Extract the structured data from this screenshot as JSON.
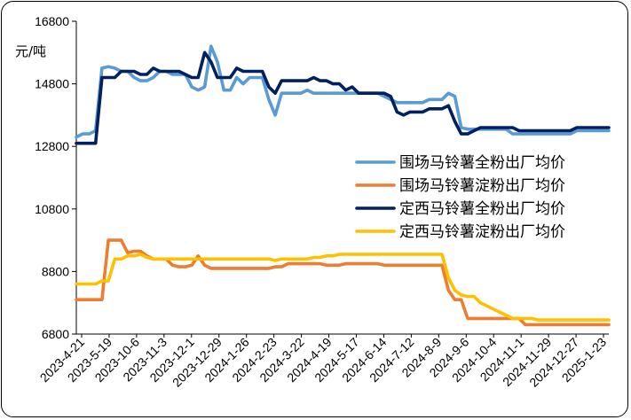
{
  "chart_data": {
    "type": "line",
    "unit_label": "元/吨",
    "ylim": [
      6800,
      16800
    ],
    "yticks": [
      6800,
      8800,
      10800,
      12800,
      14800,
      16800
    ],
    "grid": false,
    "legend_position": "right",
    "x_tick_labels": [
      "2023-4-21",
      "2023-5-19",
      "2023-10-6",
      "2023-11-3",
      "2023-12-1",
      "2023-12-29",
      "2024-1-26",
      "2024-2-23",
      "2024-3-22",
      "2024-4-19",
      "2024-5-17",
      "2024-6-14",
      "2024-7-12",
      "2024-8-9",
      "2024-9-6",
      "2024-10-4",
      "2024-11-1",
      "2024-11-29",
      "2024-12-27",
      "2025-1-23"
    ],
    "n_points": 84,
    "series": [
      {
        "name": "围场马铃薯全粉出厂均价",
        "color": "#5B9BD5",
        "values": [
          13100,
          13200,
          13200,
          13300,
          15300,
          15350,
          15300,
          15200,
          15200,
          15000,
          14900,
          14900,
          15000,
          15200,
          15200,
          15100,
          15100,
          15100,
          14700,
          14600,
          14700,
          16000,
          15500,
          14600,
          14600,
          15000,
          14800,
          15000,
          15000,
          15000,
          14300,
          13800,
          14500,
          14500,
          14500,
          14500,
          14600,
          14500,
          14500,
          14500,
          14500,
          14500,
          14500,
          14500,
          14500,
          14500,
          14500,
          14500,
          14400,
          14300,
          14200,
          14200,
          14200,
          14200,
          14200,
          14300,
          14300,
          14300,
          14500,
          14400,
          13400,
          13350,
          13350,
          13350,
          13350,
          13350,
          13350,
          13350,
          13200,
          13200,
          13200,
          13200,
          13200,
          13200,
          13200,
          13200,
          13200,
          13200,
          13300,
          13300,
          13300,
          13300,
          13300,
          13300
        ]
      },
      {
        "name": "围场马铃薯淀粉出厂均价",
        "color": "#ED7D31",
        "values": [
          7900,
          7900,
          7900,
          7900,
          7900,
          9800,
          9800,
          9800,
          9400,
          9450,
          9450,
          9300,
          9200,
          9200,
          9200,
          9000,
          8950,
          8950,
          9000,
          9300,
          9000,
          8900,
          8900,
          8900,
          8900,
          8900,
          8900,
          8900,
          8900,
          8900,
          8900,
          8950,
          8950,
          9050,
          9050,
          9050,
          9050,
          9050,
          9050,
          9000,
          9000,
          9000,
          9050,
          9050,
          9050,
          9050,
          9050,
          9050,
          9000,
          9000,
          9000,
          9000,
          9000,
          9000,
          9000,
          9000,
          9000,
          9000,
          8200,
          7900,
          7900,
          7300,
          7300,
          7300,
          7300,
          7300,
          7300,
          7300,
          7300,
          7300,
          7100,
          7100,
          7100,
          7100,
          7100,
          7100,
          7100,
          7100,
          7100,
          7100,
          7100,
          7100,
          7100,
          7100
        ]
      },
      {
        "name": "定西马铃薯全粉出厂均价",
        "color": "#002060",
        "values": [
          12900,
          12900,
          12900,
          12900,
          15000,
          15000,
          15000,
          15200,
          15200,
          15200,
          15100,
          15100,
          15300,
          15200,
          15200,
          15200,
          15200,
          15100,
          15000,
          15000,
          15800,
          15500,
          15000,
          15000,
          15000,
          15300,
          15200,
          15200,
          15200,
          15200,
          14700,
          14500,
          14900,
          14900,
          14900,
          14900,
          14900,
          15000,
          14900,
          14900,
          14800,
          14800,
          14600,
          14700,
          14500,
          14500,
          14500,
          14500,
          14500,
          14400,
          13900,
          13800,
          13900,
          13900,
          13900,
          14000,
          14000,
          14000,
          14100,
          13600,
          13200,
          13200,
          13300,
          13400,
          13400,
          13400,
          13400,
          13400,
          13400,
          13300,
          13300,
          13300,
          13300,
          13300,
          13300,
          13300,
          13300,
          13300,
          13400,
          13400,
          13400,
          13400,
          13400,
          13400
        ]
      },
      {
        "name": "定西马铃薯淀粉出厂均价",
        "color": "#FFC000",
        "values": [
          8400,
          8400,
          8400,
          8400,
          8500,
          8500,
          9200,
          9200,
          9300,
          9300,
          9350,
          9250,
          9200,
          9200,
          9200,
          9200,
          9200,
          9200,
          9200,
          9200,
          9200,
          9200,
          9200,
          9200,
          9200,
          9200,
          9200,
          9200,
          9200,
          9200,
          9200,
          9150,
          9200,
          9200,
          9200,
          9200,
          9200,
          9250,
          9250,
          9300,
          9300,
          9350,
          9350,
          9350,
          9350,
          9350,
          9350,
          9350,
          9350,
          9350,
          9350,
          9350,
          9350,
          9350,
          9350,
          9350,
          9350,
          9350,
          8600,
          8200,
          8050,
          8000,
          8000,
          7800,
          7700,
          7600,
          7500,
          7400,
          7300,
          7300,
          7300,
          7300,
          7250,
          7250,
          7250,
          7250,
          7250,
          7250,
          7250,
          7250,
          7250,
          7250,
          7250,
          7250
        ]
      }
    ]
  }
}
